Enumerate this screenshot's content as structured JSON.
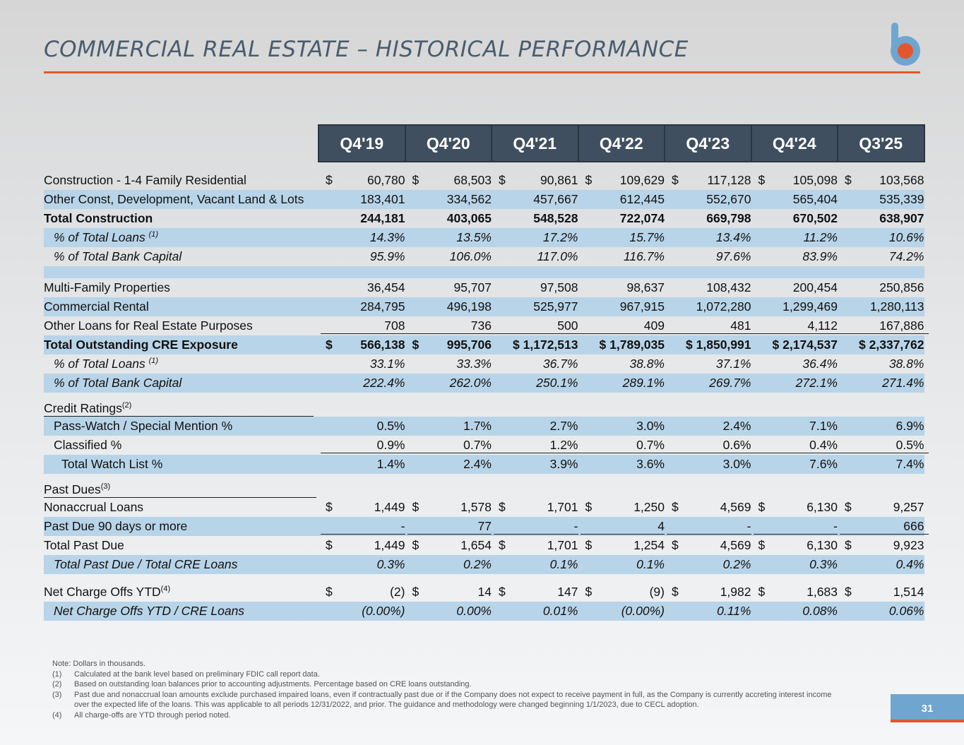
{
  "title": "COMMERCIAL REAL ESTATE – HISTORICAL PERFORMANCE",
  "brand": {
    "accent": "#e4572e",
    "logo_blue": "#6fa6cf",
    "header_bg": "#3f4f5f",
    "row_blue": "#b8d4e8"
  },
  "columns": [
    "Q4'19",
    "Q4'20",
    "Q4'21",
    "Q4'22",
    "Q4'23",
    "Q4'24",
    "Q3'25"
  ],
  "rows": {
    "construction_14": {
      "label": "Construction - 1-4 Family Residential",
      "values": [
        "60,780",
        "68,503",
        "90,861",
        "109,629",
        "117,128",
        "105,098",
        "103,568"
      ]
    },
    "other_const": {
      "label": "Other Const, Development, Vacant Land & Lots",
      "values": [
        "183,401",
        "334,562",
        "457,667",
        "612,445",
        "552,670",
        "565,404",
        "535,339"
      ]
    },
    "total_construction": {
      "label": "Total Construction",
      "values": [
        "244,181",
        "403,065",
        "548,528",
        "722,074",
        "669,798",
        "670,502",
        "638,907"
      ]
    },
    "tc_pct_loans": {
      "label": "% of Total Loans ",
      "sup": "(1)",
      "values": [
        "14.3%",
        "13.5%",
        "17.2%",
        "15.7%",
        "13.4%",
        "11.2%",
        "10.6%"
      ]
    },
    "tc_pct_capital": {
      "label": "% of Total Bank Capital",
      "values": [
        "95.9%",
        "106.0%",
        "117.0%",
        "116.7%",
        "97.6%",
        "83.9%",
        "74.2%"
      ]
    },
    "multifamily": {
      "label": "Multi-Family Properties",
      "values": [
        "36,454",
        "95,707",
        "97,508",
        "98,637",
        "108,432",
        "200,454",
        "250,856"
      ]
    },
    "commercial_rental": {
      "label": "Commercial Rental",
      "values": [
        "284,795",
        "496,198",
        "525,977",
        "967,915",
        "1,072,280",
        "1,299,469",
        "1,280,113"
      ]
    },
    "other_re": {
      "label": "Other Loans for Real Estate Purposes",
      "values": [
        "708",
        "736",
        "500",
        "409",
        "481",
        "4,112",
        "167,886"
      ]
    },
    "total_cre": {
      "label": "Total Outstanding CRE Exposure",
      "values": [
        "566,138",
        "995,706",
        "$ 1,172,513",
        "$ 1,789,035",
        "$ 1,850,991",
        "$ 2,174,537",
        "$ 2,337,762"
      ]
    },
    "cre_pct_loans": {
      "label": "% of Total Loans ",
      "sup": "(1)",
      "values": [
        "33.1%",
        "33.3%",
        "36.7%",
        "38.8%",
        "37.1%",
        "36.4%",
        "38.8%"
      ]
    },
    "cre_pct_capital": {
      "label": "% of Total Bank Capital",
      "values": [
        "222.4%",
        "262.0%",
        "250.1%",
        "289.1%",
        "269.7%",
        "272.1%",
        "271.4%"
      ]
    },
    "credit_ratings": {
      "label": "Credit Ratings",
      "sup": "(2)"
    },
    "pass_watch": {
      "label": "Pass-Watch / Special Mention %",
      "values": [
        "0.5%",
        "1.7%",
        "2.7%",
        "3.0%",
        "2.4%",
        "7.1%",
        "6.9%"
      ]
    },
    "classified": {
      "label": "Classified %",
      "values": [
        "0.9%",
        "0.7%",
        "1.2%",
        "0.7%",
        "0.6%",
        "0.4%",
        "0.5%"
      ]
    },
    "total_watch": {
      "label": "Total Watch List %",
      "values": [
        "1.4%",
        "2.4%",
        "3.9%",
        "3.6%",
        "3.0%",
        "7.6%",
        "7.4%"
      ]
    },
    "past_dues": {
      "label": "Past Dues",
      "sup": "(3)"
    },
    "nonaccrual": {
      "label": "Nonaccrual Loans",
      "values": [
        "1,449",
        "1,578",
        "1,701",
        "1,250",
        "4,569",
        "6,130",
        "9,257"
      ]
    },
    "pd90": {
      "label": "Past Due 90 days or more",
      "values": [
        "-",
        "77",
        "-",
        "4",
        "-",
        "-",
        "666"
      ]
    },
    "total_pd": {
      "label": "Total Past Due",
      "values": [
        "1,449",
        "1,654",
        "1,701",
        "1,254",
        "4,569",
        "6,130",
        "9,923"
      ]
    },
    "pd_ratio": {
      "label": "Total Past Due / Total  CRE Loans",
      "values": [
        "0.3%",
        "0.2%",
        "0.1%",
        "0.1%",
        "0.2%",
        "0.3%",
        "0.4%"
      ]
    },
    "nco": {
      "label": "Net Charge Offs YTD",
      "sup": "(4)",
      "values": [
        "(2)",
        "14",
        "147",
        "(9)",
        "1,982",
        "1,683",
        "1,514"
      ]
    },
    "nco_ratio": {
      "label": "Net Charge Offs YTD / CRE Loans",
      "values": [
        "(0.00%)",
        "0.00%",
        "0.01%",
        "(0.00%)",
        "0.11%",
        "0.08%",
        "0.06%"
      ]
    }
  },
  "currency_symbol": "$",
  "notes": [
    {
      "key": "",
      "text": "Note: Dollars in thousands."
    },
    {
      "key": "(1)",
      "text": "Calculated at the bank level based on preliminary FDIC call report data."
    },
    {
      "key": "(2)",
      "text": "Based on outstanding loan balances prior to accounting adjustments. Percentage based on CRE loans outstanding."
    },
    {
      "key": "(3)",
      "text": "Past due and nonaccrual loan amounts exclude purchased impaired loans, even if contractually past due or if the Company does not expect to receive payment in full, as the Company is currently accreting interest income over the expected life of the loans. This was applicable to all periods 12/31/2022, and prior. The guidance and methodology were changed beginning 1/1/2023, due to CECL adoption."
    },
    {
      "key": "(4)",
      "text": "All charge-offs are YTD through period noted."
    }
  ],
  "page_number": "31"
}
